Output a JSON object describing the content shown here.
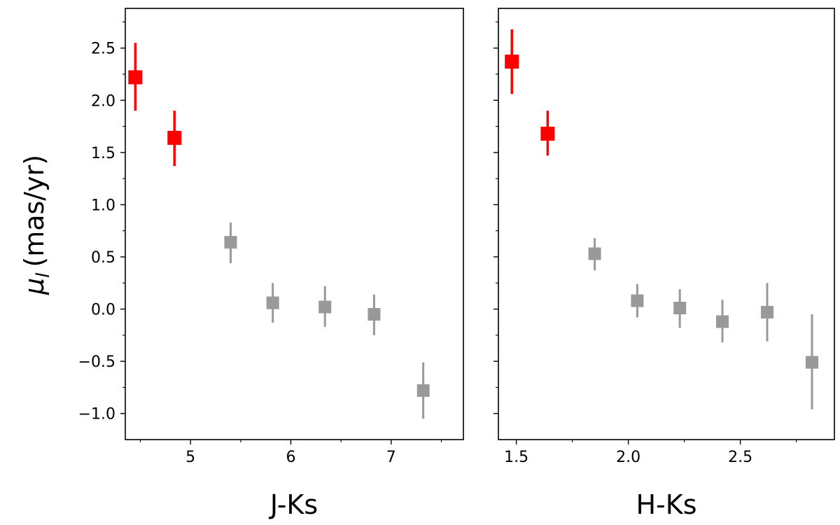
{
  "chart_data": [
    {
      "type": "scatter",
      "ylabel_symbol": "μ",
      "ylabel_sub": "l",
      "ylabel_unit": "(mas/yr)",
      "xlabel": "J-Ks",
      "xlim": [
        4.35,
        7.72
      ],
      "ylim": [
        -1.25,
        2.88
      ],
      "xticks": [
        5,
        6,
        7
      ],
      "xtick_labels": [
        "5",
        "6",
        "7"
      ],
      "xminor": [
        4.5,
        5.5,
        6.5,
        7.5
      ],
      "yticks": [
        -1.0,
        -0.5,
        0.0,
        0.5,
        1.0,
        1.5,
        2.0,
        2.5
      ],
      "ytick_labels": [
        "−1.0",
        "−0.5",
        "0.0",
        "0.5",
        "1.0",
        "1.5",
        "2.0",
        "2.5"
      ],
      "yminor": [
        -0.75,
        -0.25,
        0.25,
        0.75,
        1.25,
        1.75,
        2.25,
        2.75
      ],
      "grid": false,
      "points": [
        {
          "x": 4.45,
          "y": 2.22,
          "ylow": 1.9,
          "yhigh": 2.55,
          "color": "#ff0000"
        },
        {
          "x": 4.84,
          "y": 1.64,
          "ylow": 1.37,
          "yhigh": 1.9,
          "color": "#ff0000"
        },
        {
          "x": 5.4,
          "y": 0.64,
          "ylow": 0.44,
          "yhigh": 0.83,
          "color": "#999999"
        },
        {
          "x": 5.82,
          "y": 0.06,
          "ylow": -0.13,
          "yhigh": 0.25,
          "color": "#999999"
        },
        {
          "x": 6.34,
          "y": 0.02,
          "ylow": -0.17,
          "yhigh": 0.22,
          "color": "#999999"
        },
        {
          "x": 6.83,
          "y": -0.05,
          "ylow": -0.25,
          "yhigh": 0.14,
          "color": "#999999"
        },
        {
          "x": 7.32,
          "y": -0.78,
          "ylow": -1.05,
          "yhigh": -0.51,
          "color": "#999999"
        }
      ]
    },
    {
      "type": "scatter",
      "xlabel": "H-Ks",
      "xlim": [
        1.42,
        2.92
      ],
      "ylim": [
        -1.25,
        2.88
      ],
      "xticks": [
        1.5,
        2.0,
        2.5
      ],
      "xtick_labels": [
        "1.5",
        "2.0",
        "2.5"
      ],
      "xminor": [
        1.75,
        2.25,
        2.75
      ],
      "yticks": [
        -1.0,
        -0.5,
        0.0,
        0.5,
        1.0,
        1.5,
        2.0,
        2.5
      ],
      "yminor": [
        -0.75,
        -0.25,
        0.25,
        0.75,
        1.25,
        1.75,
        2.25,
        2.75
      ],
      "grid": false,
      "points": [
        {
          "x": 1.48,
          "y": 2.37,
          "ylow": 2.06,
          "yhigh": 2.68,
          "color": "#ff0000"
        },
        {
          "x": 1.64,
          "y": 1.68,
          "ylow": 1.47,
          "yhigh": 1.9,
          "color": "#ff0000"
        },
        {
          "x": 1.85,
          "y": 0.53,
          "ylow": 0.37,
          "yhigh": 0.68,
          "color": "#999999"
        },
        {
          "x": 2.04,
          "y": 0.08,
          "ylow": -0.08,
          "yhigh": 0.24,
          "color": "#999999"
        },
        {
          "x": 2.23,
          "y": 0.01,
          "ylow": -0.18,
          "yhigh": 0.19,
          "color": "#999999"
        },
        {
          "x": 2.42,
          "y": -0.12,
          "ylow": -0.32,
          "yhigh": 0.09,
          "color": "#999999"
        },
        {
          "x": 2.62,
          "y": -0.03,
          "ylow": -0.31,
          "yhigh": 0.25,
          "color": "#999999"
        },
        {
          "x": 2.82,
          "y": -0.51,
          "ylow": -0.96,
          "yhigh": -0.05,
          "color": "#999999"
        }
      ]
    }
  ]
}
